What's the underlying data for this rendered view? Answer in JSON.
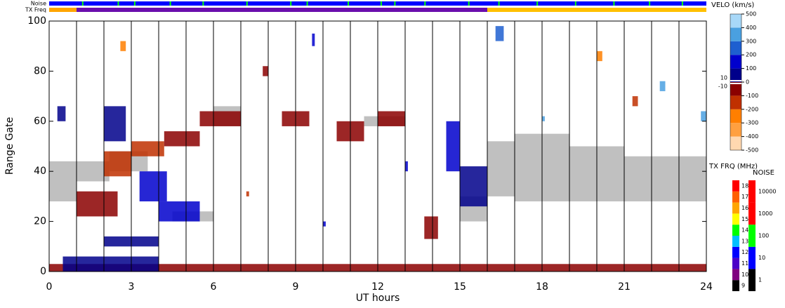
{
  "chart_data": {
    "type": "range-time",
    "xlabel": "UT hours",
    "ylabel": "Range Gate",
    "xlim": [
      0,
      24
    ],
    "xticks": [
      0,
      3,
      6,
      9,
      12,
      15,
      18,
      21,
      24
    ],
    "ylim": [
      0,
      100
    ],
    "yticks": [
      0,
      20,
      40,
      60,
      80,
      100
    ],
    "hour_lines": true,
    "noise_label": "Noise",
    "txfreq_label": "TX Freq",
    "noise_bar": {
      "color": "#0000ff",
      "fleck_color": "#00ff00",
      "flecks": [
        1.2,
        2.5,
        3.1,
        4.4,
        5.6,
        7.2,
        8.8,
        9.4,
        10.9,
        12.1,
        12.6,
        13.7,
        15.3,
        16.4,
        17.8,
        19.2,
        20.6,
        21.9,
        23.1
      ]
    },
    "txfreq_bar": [
      {
        "start": 0,
        "end": 1,
        "color": "#ffa500"
      },
      {
        "start": 1,
        "end": 16,
        "color": "#6a0dad"
      },
      {
        "start": 16,
        "end": 24,
        "color": "#ffc000"
      }
    ],
    "ground_scatter_color": "#c0c0c0",
    "ground_scatter": [
      [
        0,
        1,
        28,
        44
      ],
      [
        1,
        2.2,
        36,
        44
      ],
      [
        2.2,
        3.6,
        40,
        48
      ],
      [
        4.5,
        6,
        20,
        24
      ],
      [
        6,
        7,
        58,
        66
      ],
      [
        11.5,
        13,
        58,
        62
      ],
      [
        15,
        16,
        20,
        30
      ],
      [
        16,
        17,
        30,
        52
      ],
      [
        17,
        19,
        28,
        55
      ],
      [
        19,
        21,
        28,
        50
      ],
      [
        21,
        24,
        28,
        46
      ]
    ],
    "patches": [
      [
        1,
        2.5,
        22,
        32,
        -100
      ],
      [
        2,
        3,
        38,
        48,
        -150
      ],
      [
        3,
        4.2,
        46,
        52,
        -120
      ],
      [
        4.2,
        5.5,
        50,
        56,
        -100
      ],
      [
        5.5,
        7,
        58,
        64,
        -100
      ],
      [
        2,
        2.8,
        52,
        66,
        80
      ],
      [
        3.3,
        4.3,
        28,
        40,
        100
      ],
      [
        4,
        5.5,
        20,
        28,
        120
      ],
      [
        2,
        4,
        10,
        14,
        80
      ],
      [
        0,
        24,
        0,
        3,
        -80
      ],
      [
        0.5,
        4,
        0,
        6,
        70
      ],
      [
        10.5,
        11.5,
        52,
        60,
        -100
      ],
      [
        13.7,
        14.2,
        13,
        22,
        -100
      ],
      [
        15,
        16,
        26,
        42,
        80
      ],
      [
        14.5,
        15,
        40,
        60,
        100
      ],
      [
        8.5,
        9.5,
        58,
        64,
        -100
      ],
      [
        12,
        13,
        58,
        64,
        -100
      ],
      [
        0.3,
        0.6,
        60,
        66,
        90
      ],
      [
        7.8,
        8.0,
        78,
        82,
        -60
      ],
      [
        16.3,
        16.6,
        92,
        98,
        250
      ],
      [
        18,
        18.1,
        60,
        62,
        350
      ],
      [
        21.3,
        21.5,
        66,
        70,
        -150
      ],
      [
        22.3,
        22.5,
        72,
        76,
        300
      ],
      [
        23.8,
        24,
        60,
        64,
        320
      ],
      [
        2.6,
        2.8,
        88,
        92,
        -300
      ],
      [
        9.6,
        9.7,
        90,
        95,
        150
      ],
      [
        20,
        20.2,
        84,
        88,
        -250
      ],
      [
        13,
        13.1,
        40,
        44,
        100
      ],
      [
        7.2,
        7.3,
        30,
        32,
        -200
      ],
      [
        10,
        10.1,
        18,
        20,
        100
      ]
    ],
    "velo_title": "VELO (km/s)",
    "velo_scale": {
      "lim": [
        -500,
        500
      ],
      "colors": [
        "#ffd8b0",
        "#ffa040",
        "#ff7f00",
        "#c03000",
        "#8b0000",
        "#00008b",
        "#0000cd",
        "#1e5fd0",
        "#4aa0e0",
        "#a8d8f8"
      ]
    },
    "velo_ticks": [
      500,
      400,
      300,
      200,
      100,
      0,
      -100,
      -200,
      -300,
      -400,
      -500
    ],
    "velo_inner_ticks": [
      10,
      -10
    ],
    "txfrq_title": "TX FRQ (MHz)",
    "txfrq_ticks": [
      9,
      10,
      11,
      12,
      13,
      14,
      15,
      16,
      17,
      18
    ],
    "txfrq_colors": [
      "#000000",
      "#800080",
      "#4b00c8",
      "#0000ff",
      "#00c0ff",
      "#00ff00",
      "#ffff00",
      "#ffa500",
      "#ff6000",
      "#ff0000"
    ],
    "noise_title": "NOISE",
    "noise_ticks": [
      1,
      10,
      100,
      1000,
      10000
    ],
    "noise_colors": [
      "#000000",
      "#0000ff",
      "#00ff00",
      "#ff0000",
      "#ff0000"
    ]
  }
}
